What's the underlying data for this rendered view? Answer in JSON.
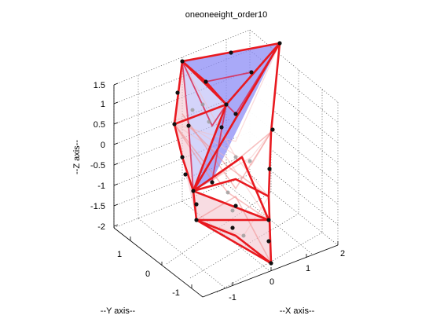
{
  "chart_data": {
    "type": "3d-mesh",
    "title": "oneoneeight_order10",
    "xlabel": "--X axis--",
    "ylabel": "--Y axis--",
    "zlabel": "--Z axis--",
    "x_ticks": [
      "-1",
      "0",
      "1",
      "2"
    ],
    "y_ticks": [
      "1",
      "0",
      "-1"
    ],
    "z_ticks": [
      "1.5",
      "1",
      "0.5",
      "0",
      "-0.5",
      "-1",
      "-1.5",
      "-2"
    ],
    "grid": true,
    "colors": {
      "edges": "#e8191f",
      "faces": "#8c8cf5",
      "nodes": "#111111"
    }
  }
}
